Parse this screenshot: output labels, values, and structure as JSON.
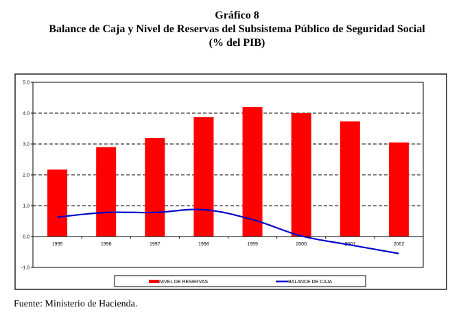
{
  "title": "Gráfico 8",
  "subtitle": "Balance de Caja y Nivel de Reservas del Subsistema Público de Seguridad Social",
  "units": "(% del PIB)",
  "source": "Fuente: Ministerio de Hacienda.",
  "chart_data": {
    "type": "bar",
    "title": "Balance de Caja y Nivel de Reservas del Subsistema Público de Seguridad Social",
    "xlabel": "",
    "ylabel": "",
    "categories": [
      "1995",
      "1996",
      "1997",
      "1998",
      "1999",
      "2000",
      "2001",
      "2002"
    ],
    "ylim": [
      -1.0,
      5.0
    ],
    "yticks": [
      "5.0",
      "4.0",
      "3.0",
      "2.0",
      "1.0",
      "0.0",
      "-1.0"
    ],
    "ytick_values": [
      5,
      4,
      3,
      2,
      1,
      0,
      -1
    ],
    "grid": true,
    "legend_position": "bottom",
    "series": [
      {
        "name": "NIVEL DE RESERVAS",
        "type": "bar",
        "color": "#ff0000",
        "values": [
          2.17,
          2.9,
          3.2,
          3.87,
          4.2,
          4.0,
          3.73,
          3.05
        ]
      },
      {
        "name": "BALANCE DE CAJA",
        "type": "line",
        "color": "#0000cc",
        "values": [
          0.63,
          0.78,
          0.78,
          0.87,
          0.55,
          0.02,
          -0.27,
          -0.55
        ]
      }
    ]
  }
}
